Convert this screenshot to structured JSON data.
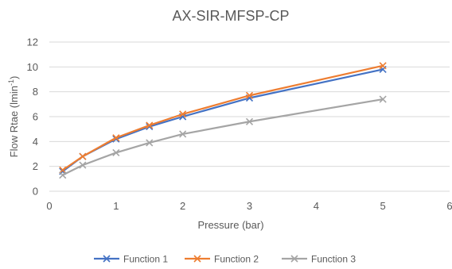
{
  "chart_data": {
    "type": "line",
    "title": "AX-SIR-MFSP-CP",
    "xlabel": "Pressure (bar)",
    "ylabel": "Flow Rtae (lmin",
    "ylabel_sup": "-1",
    "ylabel_end": ")",
    "xlim": [
      0,
      6
    ],
    "ylim": [
      0,
      12
    ],
    "xticks": [
      0,
      1,
      2,
      3,
      4,
      5,
      6
    ],
    "yticks": [
      0,
      2,
      4,
      6,
      8,
      10,
      12
    ],
    "grid": "horizontal",
    "legend_position": "bottom",
    "series": [
      {
        "name": "Function 1",
        "color": "#4472C4",
        "x": [
          0.2,
          0.5,
          1,
          1.5,
          2,
          3,
          5
        ],
        "y": [
          1.6,
          2.8,
          4.2,
          5.2,
          6.0,
          7.5,
          9.8
        ]
      },
      {
        "name": "Function 2",
        "color": "#ED7D31",
        "x": [
          0.2,
          0.5,
          1,
          1.5,
          2,
          3,
          5
        ],
        "y": [
          1.7,
          2.8,
          4.3,
          5.3,
          6.2,
          7.7,
          10.1
        ]
      },
      {
        "name": "Function 3",
        "color": "#A5A5A5",
        "x": [
          0.2,
          0.5,
          1,
          1.5,
          2,
          3,
          5
        ],
        "y": [
          1.3,
          2.1,
          3.1,
          3.9,
          4.6,
          5.6,
          7.4
        ]
      }
    ]
  }
}
